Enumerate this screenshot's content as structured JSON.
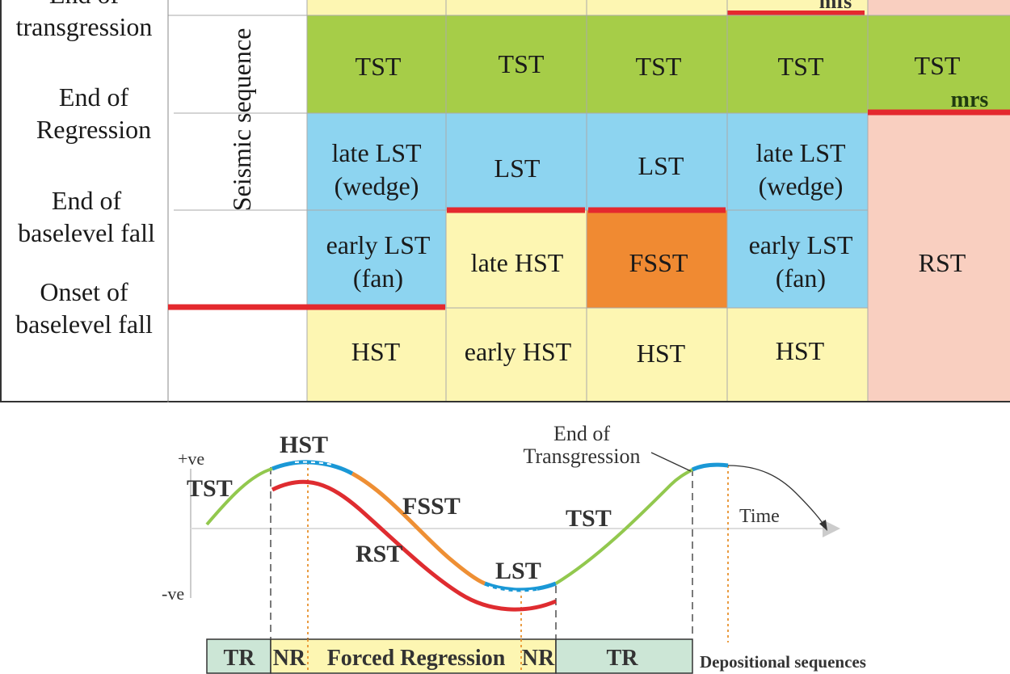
{
  "colors": {
    "pale_yellow": "#fdf6b2",
    "green": "#a6cd48",
    "blue": "#8dd4f0",
    "orange": "#f08a32",
    "pink": "#f9cfc0",
    "red": "#e4292e",
    "tr_box": "#cce6d6",
    "line_green": "#92c84e",
    "line_blue": "#1a98d6",
    "line_orange": "#ee8f34",
    "line_red": "#df2c30"
  },
  "row_labels": [
    "End of transgression",
    "End of Regression",
    "End of baselevel fall",
    "Onset of baselevel fall"
  ],
  "row_label_lines": [
    [
      "End of",
      "transgression"
    ],
    [
      "End of",
      "Regression"
    ],
    [
      "End of",
      "baselevel fall"
    ],
    [
      "Onset of",
      "baselevel fall"
    ]
  ],
  "seismic_sequence_label": "Seismic sequence",
  "columns": [
    {
      "top_cell": "",
      "cells": [
        {
          "lines": [
            "TST"
          ],
          "color": "green"
        },
        {
          "lines": [
            "late LST",
            "(wedge)"
          ],
          "color": "blue"
        },
        {
          "lines": [
            "early LST",
            "(fan)"
          ],
          "color": "blue"
        },
        {
          "lines": [
            "HST"
          ],
          "color": "pale_yellow"
        }
      ]
    },
    {
      "cells": [
        {
          "lines": [
            "TST"
          ],
          "color": "green"
        },
        {
          "lines": [
            "LST"
          ],
          "color": "blue"
        },
        {
          "lines": [
            "late HST"
          ],
          "color": "pale_yellow"
        },
        {
          "lines": [
            "early HST"
          ],
          "color": "pale_yellow"
        }
      ]
    },
    {
      "cells": [
        {
          "lines": [
            "TST"
          ],
          "color": "green"
        },
        {
          "lines": [
            "LST"
          ],
          "color": "blue"
        },
        {
          "lines": [
            "FSST"
          ],
          "color": "orange"
        },
        {
          "lines": [
            "HST"
          ],
          "color": "pale_yellow"
        }
      ]
    },
    {
      "cells": [
        {
          "lines": [
            "TST"
          ],
          "color": "green"
        },
        {
          "lines": [
            "late LST",
            "(wedge)"
          ],
          "color": "blue"
        },
        {
          "lines": [
            "early LST",
            "(fan)"
          ],
          "color": "blue"
        },
        {
          "lines": [
            "HST"
          ],
          "color": "pale_yellow"
        }
      ]
    },
    {
      "cells": [
        {
          "lines": [
            "TST"
          ],
          "color": "green",
          "surface_label": "mrs"
        },
        {
          "lines": [
            "RST"
          ],
          "color": "pink"
        }
      ]
    }
  ],
  "top_partial_label": "mfs",
  "curve_labels": {
    "plus": "+ve",
    "minus": "-ve",
    "tst_left": "TST",
    "hst": "HST",
    "fsst": "FSST",
    "rst": "RST",
    "lst": "LST",
    "tst_right": "TST",
    "end_of_transgression": [
      "End of",
      "Transgression"
    ],
    "time": "Time"
  },
  "bottom_bar": {
    "segments": [
      "TR",
      "NR",
      "Forced Regression",
      "NR",
      "TR"
    ],
    "caption": "Depositional sequences"
  }
}
